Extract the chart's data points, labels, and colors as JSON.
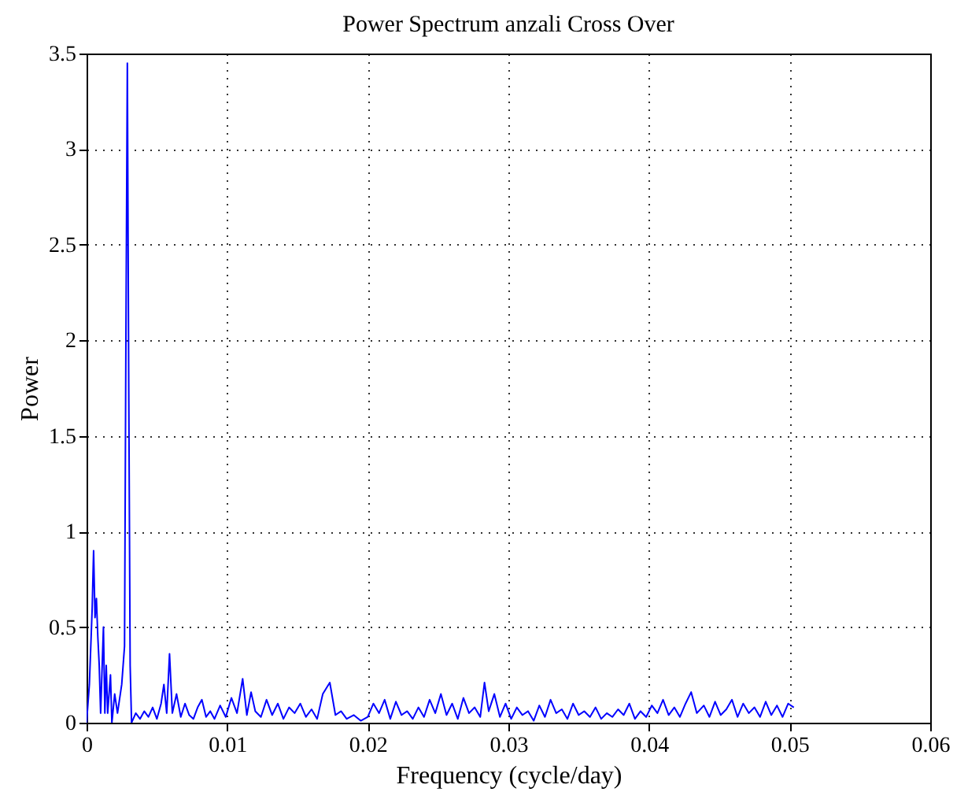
{
  "chart_data": {
    "type": "line",
    "title": "Power Spectrum anzali Cross Over",
    "xlabel": "Frequency (cycle/day)",
    "ylabel": "Power",
    "xlim": [
      0,
      0.06
    ],
    "xticks": [
      0,
      0.01,
      0.02,
      0.03,
      0.04,
      0.05,
      0.06
    ],
    "ylim": [
      0,
      3.5
    ],
    "yticks": [
      0,
      0.5,
      1,
      1.5,
      2,
      2.5,
      3,
      3.5
    ],
    "grid": true,
    "marker": "none",
    "line_style": "solid",
    "series": [
      {
        "color": "#0000ff",
        "x": [
          0,
          0.0002,
          0.0004,
          0.0005,
          0.0006,
          0.0007,
          0.0008,
          0.0009,
          0.001,
          0.0012,
          0.0013,
          0.0014,
          0.0015,
          0.0017,
          0.0018,
          0.002,
          0.0022,
          0.0025,
          0.0027,
          0.0028,
          0.0029,
          0.003,
          0.0031,
          0.0032,
          0.0035,
          0.0038,
          0.0041,
          0.0044,
          0.0047,
          0.005,
          0.0053,
          0.0055,
          0.0057,
          0.0059,
          0.0061,
          0.0064,
          0.0067,
          0.007,
          0.0073,
          0.0076,
          0.0079,
          0.0082,
          0.0085,
          0.0088,
          0.0091,
          0.0095,
          0.0099,
          0.0103,
          0.0107,
          0.0111,
          0.0114,
          0.0117,
          0.012,
          0.0124,
          0.0128,
          0.0132,
          0.0136,
          0.014,
          0.0144,
          0.0148,
          0.0152,
          0.0156,
          0.016,
          0.0164,
          0.0168,
          0.0173,
          0.0177,
          0.0181,
          0.0185,
          0.019,
          0.0195,
          0.02,
          0.0204,
          0.0208,
          0.0212,
          0.0216,
          0.022,
          0.0224,
          0.0228,
          0.0232,
          0.0236,
          0.024,
          0.0244,
          0.0248,
          0.0252,
          0.0256,
          0.026,
          0.0264,
          0.0268,
          0.0272,
          0.0276,
          0.028,
          0.0283,
          0.0286,
          0.029,
          0.0294,
          0.0298,
          0.0302,
          0.0306,
          0.031,
          0.0314,
          0.0318,
          0.0322,
          0.0326,
          0.033,
          0.0334,
          0.0338,
          0.0342,
          0.0346,
          0.035,
          0.0354,
          0.0358,
          0.0362,
          0.0366,
          0.037,
          0.0374,
          0.0378,
          0.0382,
          0.0386,
          0.039,
          0.0394,
          0.0398,
          0.0402,
          0.0406,
          0.041,
          0.0414,
          0.0418,
          0.0422,
          0.0426,
          0.043,
          0.0434,
          0.0439,
          0.0443,
          0.0447,
          0.0451,
          0.0455,
          0.0459,
          0.0463,
          0.0467,
          0.0471,
          0.0475,
          0.0479,
          0.0483,
          0.0487,
          0.0491,
          0.0495,
          0.0499,
          0.0503
        ],
        "values": [
          0,
          0.2,
          0.6,
          0.9,
          0.55,
          0.65,
          0.45,
          0.3,
          0.05,
          0.5,
          0.05,
          0.3,
          0.05,
          0.25,
          0,
          0.15,
          0.05,
          0.2,
          0.4,
          2.03,
          3.45,
          1.75,
          0.3,
          0,
          0.05,
          0.02,
          0.06,
          0.03,
          0.08,
          0.02,
          0.1,
          0.2,
          0.05,
          0.36,
          0.05,
          0.15,
          0.03,
          0.1,
          0.04,
          0.02,
          0.08,
          0.12,
          0.03,
          0.06,
          0.02,
          0.09,
          0.03,
          0.13,
          0.05,
          0.23,
          0.04,
          0.16,
          0.06,
          0.03,
          0.12,
          0.04,
          0.1,
          0.02,
          0.08,
          0.05,
          0.1,
          0.03,
          0.07,
          0.02,
          0.15,
          0.21,
          0.04,
          0.06,
          0.02,
          0.04,
          0.01,
          0.03,
          0.1,
          0.05,
          0.12,
          0.02,
          0.11,
          0.04,
          0.06,
          0.02,
          0.08,
          0.03,
          0.12,
          0.05,
          0.15,
          0.04,
          0.1,
          0.02,
          0.13,
          0.05,
          0.08,
          0.03,
          0.21,
          0.06,
          0.15,
          0.03,
          0.1,
          0.02,
          0.08,
          0.04,
          0.06,
          0.01,
          0.09,
          0.03,
          0.12,
          0.05,
          0.07,
          0.02,
          0.1,
          0.04,
          0.06,
          0.03,
          0.08,
          0.02,
          0.05,
          0.03,
          0.07,
          0.04,
          0.1,
          0.02,
          0.06,
          0.03,
          0.09,
          0.05,
          0.12,
          0.04,
          0.08,
          0.03,
          0.1,
          0.16,
          0.05,
          0.09,
          0.03,
          0.11,
          0.04,
          0.07,
          0.12,
          0.03,
          0.1,
          0.05,
          0.08,
          0.03,
          0.11,
          0.04,
          0.09,
          0.03,
          0.1,
          0.08
        ]
      }
    ]
  }
}
